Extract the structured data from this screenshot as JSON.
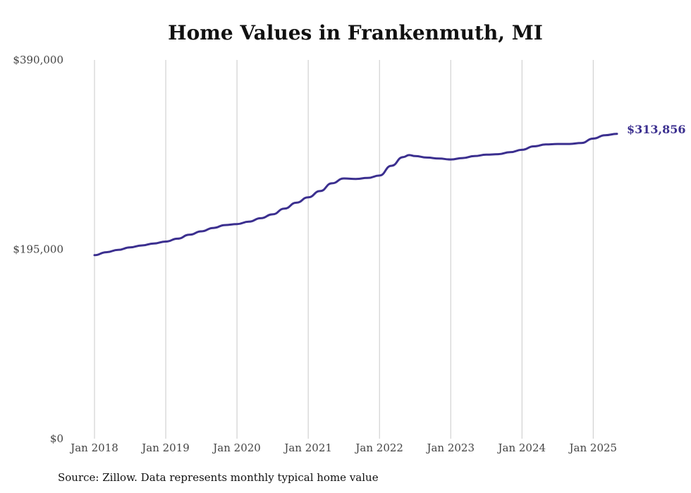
{
  "chart_data": {
    "type": "line",
    "title": "Home Values in Frankenmuth, MI",
    "xlabel": "",
    "ylabel": "",
    "y_ticks": [
      "$0",
      "$195,000",
      "$390,000"
    ],
    "ylim": [
      0,
      390000
    ],
    "x_ticks": [
      "Jan 2018",
      "Jan 2019",
      "Jan 2020",
      "Jan 2021",
      "Jan 2022",
      "Jan 2023",
      "Jan 2024",
      "Jan 2025"
    ],
    "x_tick_dates": [
      "2018-01",
      "2019-01",
      "2020-01",
      "2021-01",
      "2022-01",
      "2023-01",
      "2024-01",
      "2025-01"
    ],
    "xlim": [
      "2018-01",
      "2025-05"
    ],
    "grid": "vertical",
    "line_color": "#3b2f8f",
    "end_label": "$313,856",
    "series": [
      {
        "x": [
          "2018-01",
          "2018-03",
          "2018-05",
          "2018-07",
          "2018-09",
          "2018-11",
          "2019-01",
          "2019-03",
          "2019-05",
          "2019-07",
          "2019-09",
          "2019-11",
          "2020-01",
          "2020-03",
          "2020-05",
          "2020-07",
          "2020-09",
          "2020-11",
          "2021-01",
          "2021-03",
          "2021-05",
          "2021-07",
          "2021-09",
          "2021-11",
          "2022-01",
          "2022-03",
          "2022-05",
          "2022-06",
          "2022-07",
          "2022-09",
          "2022-11",
          "2023-01",
          "2023-03",
          "2023-05",
          "2023-07",
          "2023-09",
          "2023-11",
          "2024-01",
          "2024-03",
          "2024-05",
          "2024-07",
          "2024-09",
          "2024-11",
          "2025-01",
          "2025-03",
          "2025-05"
        ],
        "values": [
          189000,
          192000,
          194500,
          197000,
          199000,
          201000,
          203000,
          206000,
          210000,
          213500,
          217000,
          220000,
          221000,
          223500,
          227000,
          231000,
          237000,
          243000,
          248500,
          255000,
          263000,
          268000,
          267500,
          268500,
          271000,
          281000,
          290000,
          292000,
          291000,
          289500,
          288500,
          287500,
          289000,
          291000,
          292500,
          293000,
          295000,
          297500,
          301000,
          303000,
          303500,
          303500,
          304500,
          309000,
          312500,
          313856
        ]
      }
    ]
  },
  "footer": {
    "source": "Source: Zillow. Data represents monthly typical home value"
  }
}
